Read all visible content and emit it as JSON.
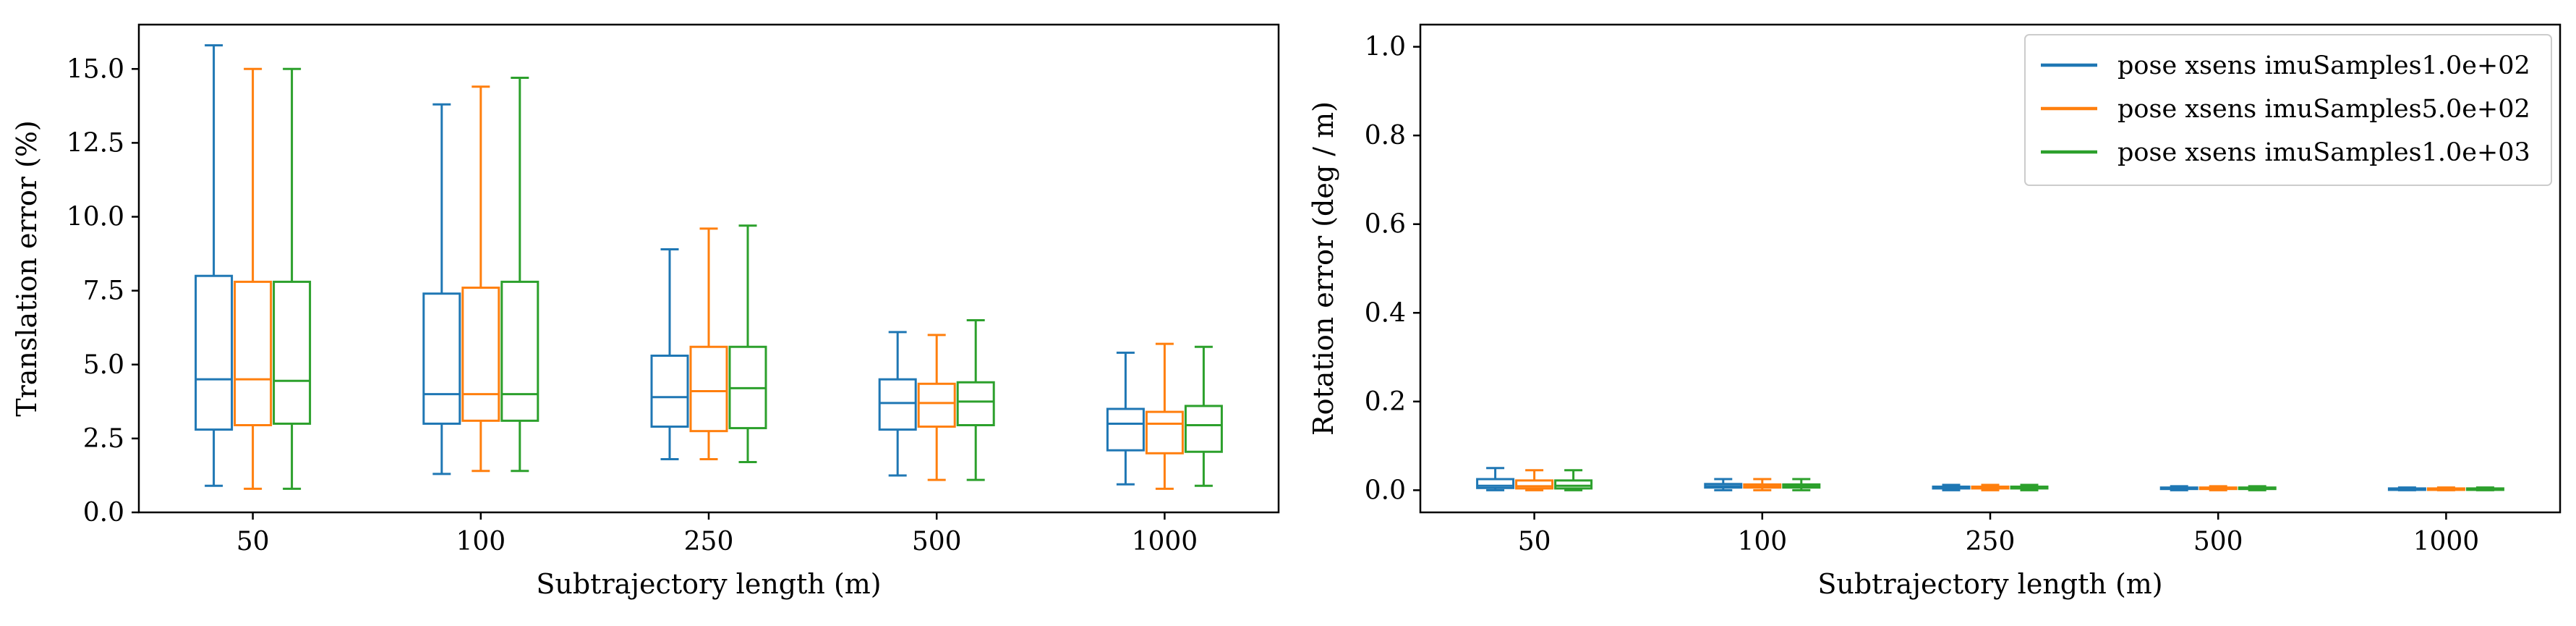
{
  "colors": {
    "series": [
      "#1f77b4",
      "#ff7f0e",
      "#2ca02c"
    ],
    "axes": "#000000",
    "background": "#ffffff",
    "legend_border": "#cccccc"
  },
  "chart_data": [
    {
      "type": "box",
      "xlabel": "Subtrajectory length (m)",
      "ylabel": "Translation error (%)",
      "categories": [
        "50",
        "100",
        "250",
        "500",
        "1000"
      ],
      "ylim": [
        0,
        16.5
      ],
      "yticks": [
        0.0,
        2.5,
        5.0,
        7.5,
        10.0,
        12.5,
        15.0
      ],
      "ytick_labels": [
        "0.0",
        "2.5",
        "5.0",
        "7.5",
        "10.0",
        "12.5",
        "15.0"
      ],
      "grid": false,
      "legend": null,
      "series": [
        {
          "name": "pose xsens imuSamples1.0e+02",
          "boxes": [
            {
              "min": 0.9,
              "q1": 2.8,
              "median": 4.5,
              "q3": 8.0,
              "max": 15.8
            },
            {
              "min": 1.3,
              "q1": 3.0,
              "median": 4.0,
              "q3": 7.4,
              "max": 13.8
            },
            {
              "min": 1.8,
              "q1": 2.9,
              "median": 3.9,
              "q3": 5.3,
              "max": 8.9
            },
            {
              "min": 1.25,
              "q1": 2.8,
              "median": 3.7,
              "q3": 4.5,
              "max": 6.1
            },
            {
              "min": 0.95,
              "q1": 2.1,
              "median": 3.0,
              "q3": 3.5,
              "max": 5.4
            }
          ]
        },
        {
          "name": "pose xsens imuSamples5.0e+02",
          "boxes": [
            {
              "min": 0.8,
              "q1": 2.95,
              "median": 4.5,
              "q3": 7.8,
              "max": 15.0
            },
            {
              "min": 1.4,
              "q1": 3.1,
              "median": 4.0,
              "q3": 7.6,
              "max": 14.4
            },
            {
              "min": 1.8,
              "q1": 2.75,
              "median": 4.1,
              "q3": 5.6,
              "max": 9.6
            },
            {
              "min": 1.1,
              "q1": 2.9,
              "median": 3.7,
              "q3": 4.35,
              "max": 6.0
            },
            {
              "min": 0.8,
              "q1": 2.0,
              "median": 3.0,
              "q3": 3.4,
              "max": 5.7
            }
          ]
        },
        {
          "name": "pose xsens imuSamples1.0e+03",
          "boxes": [
            {
              "min": 0.8,
              "q1": 3.0,
              "median": 4.45,
              "q3": 7.8,
              "max": 15.0
            },
            {
              "min": 1.4,
              "q1": 3.1,
              "median": 4.0,
              "q3": 7.8,
              "max": 14.7
            },
            {
              "min": 1.7,
              "q1": 2.85,
              "median": 4.2,
              "q3": 5.6,
              "max": 9.7
            },
            {
              "min": 1.1,
              "q1": 2.95,
              "median": 3.75,
              "q3": 4.4,
              "max": 6.5
            },
            {
              "min": 0.9,
              "q1": 2.05,
              "median": 2.95,
              "q3": 3.6,
              "max": 5.6
            }
          ]
        }
      ]
    },
    {
      "type": "box",
      "xlabel": "Subtrajectory length (m)",
      "ylabel": "Rotation error (deg / m)",
      "categories": [
        "50",
        "100",
        "250",
        "500",
        "1000"
      ],
      "ylim": [
        -0.05,
        1.05
      ],
      "yticks": [
        0.0,
        0.2,
        0.4,
        0.6,
        0.8,
        1.0
      ],
      "ytick_labels": [
        "0.0",
        "0.2",
        "0.4",
        "0.6",
        "0.8",
        "1.0"
      ],
      "grid": false,
      "legend": "top-right",
      "series": [
        {
          "name": "pose xsens imuSamples1.0e+02",
          "boxes": [
            {
              "min": 0.0,
              "q1": 0.005,
              "median": 0.01,
              "q3": 0.025,
              "max": 0.05
            },
            {
              "min": 0.0,
              "q1": 0.006,
              "median": 0.009,
              "q3": 0.014,
              "max": 0.025
            },
            {
              "min": 0.0,
              "q1": 0.004,
              "median": 0.006,
              "q3": 0.008,
              "max": 0.012
            },
            {
              "min": 0.0,
              "q1": 0.003,
              "median": 0.005,
              "q3": 0.006,
              "max": 0.009
            },
            {
              "min": 0.0,
              "q1": 0.002,
              "median": 0.003,
              "q3": 0.004,
              "max": 0.006
            }
          ]
        },
        {
          "name": "pose xsens imuSamples5.0e+02",
          "boxes": [
            {
              "min": 0.0,
              "q1": 0.004,
              "median": 0.009,
              "q3": 0.022,
              "max": 0.045
            },
            {
              "min": 0.0,
              "q1": 0.006,
              "median": 0.009,
              "q3": 0.013,
              "max": 0.025
            },
            {
              "min": 0.0,
              "q1": 0.004,
              "median": 0.006,
              "q3": 0.008,
              "max": 0.012
            },
            {
              "min": 0.0,
              "q1": 0.003,
              "median": 0.005,
              "q3": 0.006,
              "max": 0.009
            },
            {
              "min": 0.0,
              "q1": 0.002,
              "median": 0.003,
              "q3": 0.004,
              "max": 0.006
            }
          ]
        },
        {
          "name": "pose xsens imuSamples1.0e+03",
          "boxes": [
            {
              "min": 0.0,
              "q1": 0.004,
              "median": 0.01,
              "q3": 0.022,
              "max": 0.045
            },
            {
              "min": 0.0,
              "q1": 0.006,
              "median": 0.009,
              "q3": 0.013,
              "max": 0.025
            },
            {
              "min": 0.0,
              "q1": 0.004,
              "median": 0.006,
              "q3": 0.008,
              "max": 0.012
            },
            {
              "min": 0.0,
              "q1": 0.003,
              "median": 0.005,
              "q3": 0.006,
              "max": 0.009
            },
            {
              "min": 0.0,
              "q1": 0.002,
              "median": 0.003,
              "q3": 0.004,
              "max": 0.006
            }
          ]
        }
      ]
    }
  ]
}
